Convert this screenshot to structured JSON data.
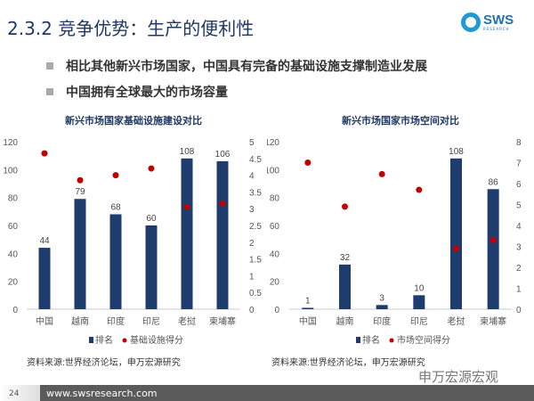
{
  "header": {
    "title": "2.3.2 竞争优势：生产的便利性",
    "logo_text": "SWS",
    "logo_sub": "RESEARCH"
  },
  "bullets": [
    "相比其他新兴市场国家，中国具有完备的基础设施支撑制造业发展",
    "中国拥有全球最大的市场容量"
  ],
  "footer": {
    "page": "24",
    "url": "www.swsresearch.com",
    "watermark": "申万宏源宏观"
  },
  "colors": {
    "bar": "#1f3c6e",
    "dot": "#c00000"
  },
  "chart_data": [
    {
      "type": "bar",
      "title": "新兴市场国家基础设施建设对比",
      "categories": [
        "中国",
        "越南",
        "印度",
        "印尼",
        "老挝",
        "柬埔寨"
      ],
      "series": [
        {
          "name": "排名",
          "axis": "left",
          "values": [
            44,
            79,
            68,
            60,
            108,
            106
          ]
        },
        {
          "name": "基础设施得分",
          "axis": "right",
          "values": [
            4.65,
            3.85,
            4.0,
            4.2,
            3.05,
            3.15
          ]
        }
      ],
      "ylim": [
        0,
        120
      ],
      "yticks": [
        "0",
        "20",
        "40",
        "60",
        "80",
        "100",
        "120"
      ],
      "y2lim": [
        0,
        5
      ],
      "y2ticks": [
        "0",
        "0.5",
        "1",
        "1.5",
        "2",
        "2.5",
        "3",
        "3.5",
        "4",
        "4.5",
        "5"
      ],
      "legend": "bottom",
      "source": "资料来源:世界经济论坛，申万宏源研究"
    },
    {
      "type": "bar",
      "title": "新兴市场国家市场空间对比",
      "categories": [
        "中国",
        "越南",
        "印度",
        "印尼",
        "老挝",
        "柬埔寨"
      ],
      "series": [
        {
          "name": "排名",
          "axis": "left",
          "values": [
            1,
            32,
            3,
            10,
            108,
            86
          ]
        },
        {
          "name": "市场空间得分",
          "axis": "right",
          "values": [
            7.0,
            4.9,
            6.45,
            5.7,
            2.9,
            3.3
          ]
        }
      ],
      "ylim": [
        0,
        120
      ],
      "yticks": [
        "0",
        "20",
        "40",
        "60",
        "80",
        "100",
        "120"
      ],
      "y2lim": [
        0,
        8
      ],
      "y2ticks": [
        "0",
        "1",
        "2",
        "3",
        "4",
        "5",
        "6",
        "7",
        "8"
      ],
      "legend": "bottom",
      "source": "资料来源:世界经济论坛，申万宏源研究"
    }
  ]
}
